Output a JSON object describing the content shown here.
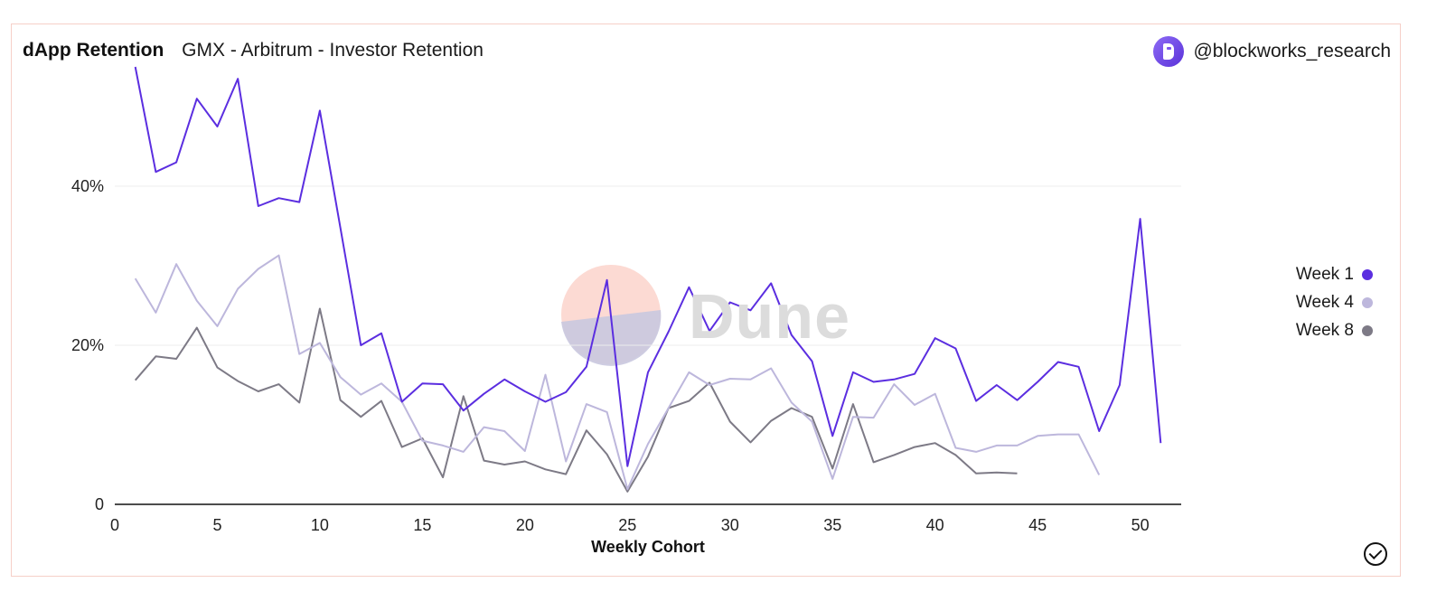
{
  "header": {
    "title": "dApp Retention",
    "subtitle": "GMX - Arbitrum - Investor Retention",
    "author": "@blockworks_research"
  },
  "watermark": {
    "text": "Dune"
  },
  "colors": {
    "week1": "#5b2ee0",
    "week4": "#bdb7dc",
    "week8": "#7d7a86",
    "grid": "#ececec",
    "axis": "#111111"
  },
  "chart_data": {
    "type": "line",
    "title": "GMX - Arbitrum - Investor Retention",
    "xlabel": "Weekly Cohort",
    "ylabel": "",
    "xlim": [
      0,
      52
    ],
    "ylim": [
      0,
      55
    ],
    "xticks": [
      0,
      5,
      10,
      15,
      20,
      25,
      30,
      35,
      40,
      45,
      50
    ],
    "yticks": [
      0,
      20,
      40
    ],
    "ytick_labels": [
      "0",
      "20%",
      "40%"
    ],
    "legend_position": "right",
    "series": [
      {
        "name": "Week 1",
        "x": [
          1,
          2,
          3,
          4,
          5,
          6,
          7,
          8,
          9,
          10,
          11,
          12,
          13,
          14,
          15,
          16,
          17,
          18,
          19,
          20,
          21,
          22,
          23,
          24,
          25,
          26,
          27,
          28,
          29,
          30,
          31,
          32,
          33,
          34,
          35,
          36,
          37,
          38,
          39,
          40,
          41,
          42,
          43,
          44,
          45,
          46,
          47,
          48,
          49,
          50,
          51
        ],
        "values": [
          55,
          41.8,
          43,
          51,
          47.5,
          53.5,
          37.5,
          38.5,
          38,
          49.5,
          34.8,
          20,
          21.5,
          12.9,
          15.2,
          15.1,
          11.8,
          13.9,
          15.7,
          14.2,
          12.9,
          14.1,
          17.3,
          28.2,
          4.8,
          16.6,
          21.7,
          27.3,
          21.8,
          25.4,
          24.4,
          27.8,
          21.3,
          18,
          8.6,
          16.6,
          15.4,
          15.7,
          16.4,
          20.9,
          19.6,
          13,
          15,
          13.1,
          15.4,
          17.9,
          17.3,
          9.2,
          15,
          35.9,
          7.7
        ]
      },
      {
        "name": "Week 4",
        "x": [
          1,
          2,
          3,
          4,
          5,
          6,
          7,
          8,
          9,
          10,
          11,
          12,
          13,
          14,
          15,
          16,
          17,
          18,
          19,
          20,
          21,
          22,
          23,
          24,
          25,
          26,
          27,
          28,
          29,
          30,
          31,
          32,
          33,
          34,
          35,
          36,
          37,
          38,
          39,
          40,
          41,
          42,
          43,
          44,
          45,
          46,
          47,
          48
        ],
        "values": [
          28.4,
          24.1,
          30.2,
          25.6,
          22.4,
          27.1,
          29.6,
          31.3,
          18.9,
          20.3,
          16,
          13.8,
          15.2,
          12.9,
          8,
          7.4,
          6.6,
          9.7,
          9.2,
          6.7,
          16.3,
          5.4,
          12.6,
          11.6,
          1.9,
          7.6,
          12.1,
          16.6,
          15,
          15.8,
          15.7,
          17.1,
          12.8,
          10.4,
          3.2,
          11,
          10.9,
          15.1,
          12.5,
          13.9,
          7.1,
          6.6,
          7.4,
          7.4,
          8.6,
          8.8,
          8.8,
          3.7
        ]
      },
      {
        "name": "Week 8",
        "x": [
          1,
          2,
          3,
          4,
          5,
          6,
          7,
          8,
          9,
          10,
          11,
          12,
          13,
          14,
          15,
          16,
          17,
          18,
          19,
          20,
          21,
          22,
          23,
          24,
          25,
          26,
          27,
          28,
          29,
          30,
          31,
          32,
          33,
          34,
          35,
          36,
          37,
          38,
          39,
          40,
          41,
          42,
          43,
          44
        ],
        "values": [
          15.6,
          18.6,
          18.3,
          22.2,
          17.2,
          15.5,
          14.2,
          15.1,
          12.8,
          24.6,
          13.1,
          11,
          13,
          7.2,
          8.3,
          3.4,
          13.6,
          5.5,
          5,
          5.4,
          4.4,
          3.8,
          9.3,
          6.3,
          1.6,
          6,
          12.1,
          13,
          15.3,
          10.4,
          7.8,
          10.5,
          12.1,
          11,
          4.5,
          12.6,
          5.3,
          6.2,
          7.2,
          7.7,
          6.2,
          3.9,
          4,
          3.9
        ]
      }
    ]
  },
  "legend": {
    "items": [
      "Week 1",
      "Week 4",
      "Week 8"
    ]
  }
}
